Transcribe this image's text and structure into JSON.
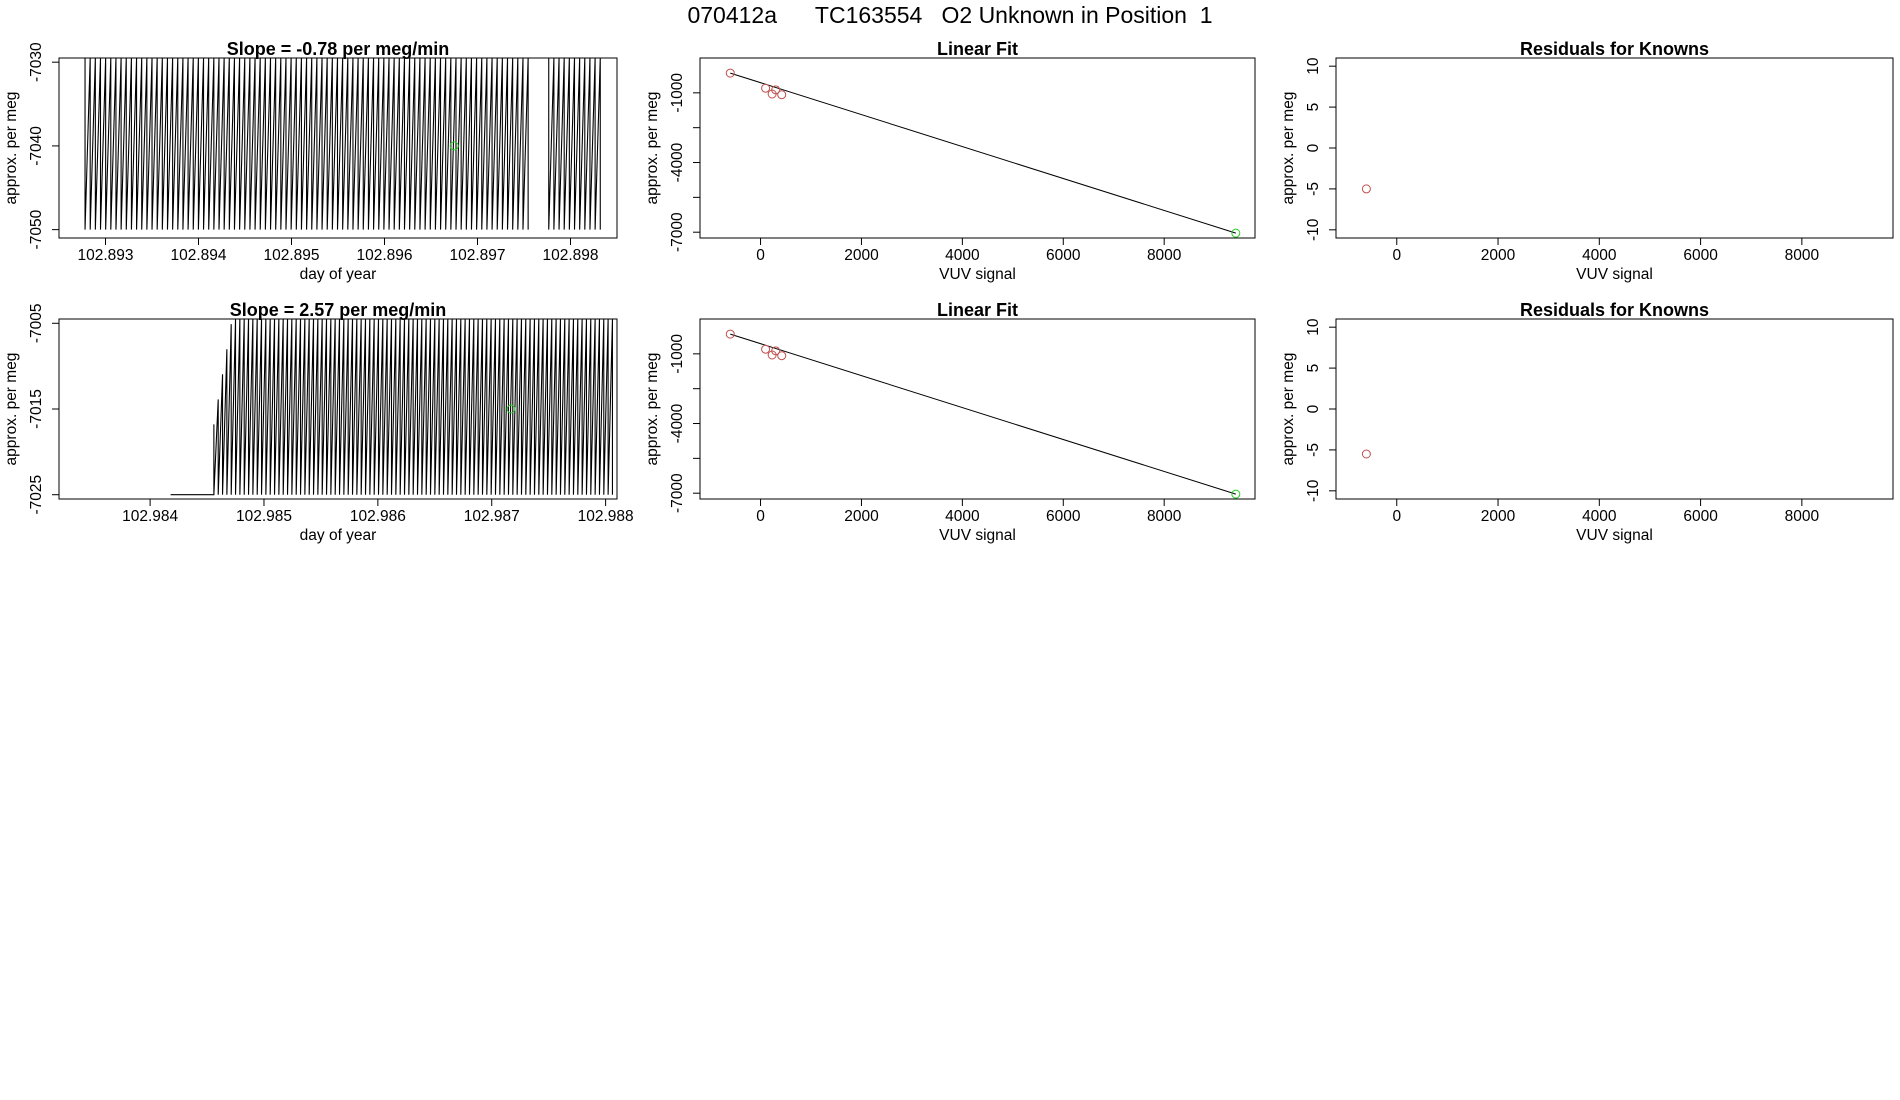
{
  "page": {
    "title": "070412a      TC163554   O2 Unknown in Position  1"
  },
  "colors": {
    "trace": "#000000",
    "known_point": "#c0504d",
    "unknown_point": "#22cc22",
    "fit_line": "#000000"
  },
  "chart_data": [
    {
      "id": "time-series-1",
      "type": "line",
      "title": "Slope =  -0.78  per meg/min",
      "xlabel": "day of year",
      "ylabel": "approx. per meg",
      "xlim": [
        102.8925,
        102.8985
      ],
      "ylim": [
        -7051,
        -7029.5
      ],
      "xticks": [
        102.893,
        102.894,
        102.895,
        102.896,
        102.897,
        102.898
      ],
      "xtick_labels": [
        "102.893",
        "102.894",
        "102.895",
        "102.896",
        "102.897",
        "102.898"
      ],
      "yticks": [
        -7050,
        -7040,
        -7030
      ],
      "ytick_labels": [
        "-7050",
        "-7040",
        "-7030"
      ],
      "trace": {
        "x_start": 102.89278,
        "x_end": 102.89832,
        "cycles": 100,
        "low": -7050,
        "high": -7029.5,
        "gap_start": 102.89755,
        "gap_end": 102.89772
      },
      "unknown_points": [
        {
          "x": 102.89675,
          "y": -7040
        }
      ]
    },
    {
      "id": "linear-fit-1",
      "type": "scatter",
      "title": "Linear Fit",
      "xlabel": "VUV signal",
      "ylabel": "approx. per meg",
      "xlim": [
        -1200,
        9800
      ],
      "ylim": [
        -7250,
        500
      ],
      "xticks": [
        0,
        2000,
        4000,
        6000,
        8000
      ],
      "xtick_labels": [
        "0",
        "2000",
        "4000",
        "6000",
        "8000"
      ],
      "yticks": [
        -7000,
        -4000,
        -1000
      ],
      "ytick_labels": [
        "-7000",
        "-4000",
        "-1000"
      ],
      "minor_yticks": [
        -5500,
        -2500
      ],
      "known_points": [
        {
          "x": -600,
          "y": -150
        },
        {
          "x": 100,
          "y": -800
        },
        {
          "x": 230,
          "y": -1050
        },
        {
          "x": 300,
          "y": -870
        },
        {
          "x": 420,
          "y": -1080
        }
      ],
      "unknown_points": [
        {
          "x": 9420,
          "y": -7040
        }
      ],
      "fit_line": {
        "x0": -600,
        "y0": -150,
        "x1": 9420,
        "y1": -7040
      }
    },
    {
      "id": "residuals-1",
      "type": "scatter",
      "title": "Residuals for Knowns",
      "xlabel": "VUV signal",
      "ylabel": "approx. per meg",
      "xlim": [
        -1200,
        9800
      ],
      "ylim": [
        -11,
        11
      ],
      "xticks": [
        0,
        2000,
        4000,
        6000,
        8000
      ],
      "xtick_labels": [
        "0",
        "2000",
        "4000",
        "6000",
        "8000"
      ],
      "yticks": [
        -10,
        -5,
        0,
        5,
        10
      ],
      "ytick_labels": [
        "-10",
        "-5",
        "0",
        "5",
        "10"
      ],
      "known_points": [
        {
          "x": -600,
          "y": -5
        }
      ]
    },
    {
      "id": "time-series-2",
      "type": "line",
      "title": "Slope =  2.57  per meg/min",
      "xlabel": "day of year",
      "ylabel": "approx. per meg",
      "xlim": [
        102.9832,
        102.9881
      ],
      "ylim": [
        -7025.5,
        -7004.5
      ],
      "xticks": [
        102.984,
        102.985,
        102.986,
        102.987,
        102.988
      ],
      "xtick_labels": [
        "102.984",
        "102.985",
        "102.986",
        "102.987",
        "102.988"
      ],
      "yticks": [
        -7025,
        -7015,
        -7005
      ],
      "ytick_labels": [
        "-7025",
        "-7015",
        "-7005"
      ],
      "flat": {
        "x_start": 102.98418,
        "x_end": 102.98456,
        "y": -7025
      },
      "trace": {
        "x_start": 102.98456,
        "x_end": 102.98806,
        "cycles": 92,
        "low": -7025,
        "high": -7004.5,
        "ramp_until": 102.98472
      },
      "unknown_points": [
        {
          "x": 102.98717,
          "y": -7015
        }
      ]
    },
    {
      "id": "linear-fit-2",
      "type": "scatter",
      "title": "Linear Fit",
      "xlabel": "VUV signal",
      "ylabel": "approx. per meg",
      "xlim": [
        -1200,
        9800
      ],
      "ylim": [
        -7250,
        500
      ],
      "xticks": [
        0,
        2000,
        4000,
        6000,
        8000
      ],
      "xtick_labels": [
        "0",
        "2000",
        "4000",
        "6000",
        "8000"
      ],
      "yticks": [
        -7000,
        -4000,
        -1000
      ],
      "ytick_labels": [
        "-7000",
        "-4000",
        "-1000"
      ],
      "minor_yticks": [
        -5500,
        -2500
      ],
      "known_points": [
        {
          "x": -600,
          "y": -150
        },
        {
          "x": 100,
          "y": -800
        },
        {
          "x": 230,
          "y": -1050
        },
        {
          "x": 300,
          "y": -870
        },
        {
          "x": 420,
          "y": -1080
        }
      ],
      "unknown_points": [
        {
          "x": 9420,
          "y": -7040
        }
      ],
      "fit_line": {
        "x0": -600,
        "y0": -150,
        "x1": 9420,
        "y1": -7040
      }
    },
    {
      "id": "residuals-2",
      "type": "scatter",
      "title": "Residuals for Knowns",
      "xlabel": "VUV signal",
      "ylabel": "approx. per meg",
      "xlim": [
        -1200,
        9800
      ],
      "ylim": [
        -11,
        11
      ],
      "xticks": [
        0,
        2000,
        4000,
        6000,
        8000
      ],
      "xtick_labels": [
        "0",
        "2000",
        "4000",
        "6000",
        "8000"
      ],
      "yticks": [
        -10,
        -5,
        0,
        5,
        10
      ],
      "ytick_labels": [
        "-10",
        "-5",
        "0",
        "5",
        "10"
      ],
      "known_points": [
        {
          "x": -600,
          "y": -5.5
        }
      ]
    }
  ]
}
